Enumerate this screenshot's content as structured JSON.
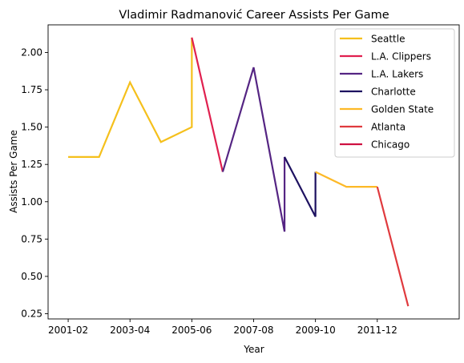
{
  "chart_data": {
    "type": "line",
    "title": "Vladimir Radmanović Career Assists Per Game",
    "xlabel": "Year",
    "ylabel": "Assists Per Game",
    "x_tick_labels": [
      "2001-02",
      "2003-04",
      "2005-06",
      "2007-08",
      "2009-10",
      "2011-12"
    ],
    "y_ticks": [
      0.25,
      0.5,
      0.75,
      1.0,
      1.25,
      1.5,
      1.75,
      2.0
    ],
    "xlim": [
      -0.65,
      12.65
    ],
    "ylim": [
      0.215,
      2.185
    ],
    "grid": false,
    "legend_position": "top-right",
    "series": [
      {
        "name": "Seattle",
        "color": "#f5c01c",
        "points": [
          [
            0,
            1.3
          ],
          [
            1,
            1.3
          ],
          [
            2,
            1.8
          ],
          [
            3,
            1.4
          ],
          [
            4,
            1.5
          ],
          [
            4,
            2.1
          ]
        ]
      },
      {
        "name": "L.A. Clippers",
        "color": "#e0204f",
        "points": [
          [
            4,
            2.1
          ],
          [
            5,
            1.2
          ]
        ]
      },
      {
        "name": "L.A. Lakers",
        "color": "#552583",
        "points": [
          [
            5,
            1.2
          ],
          [
            6,
            1.9
          ],
          [
            7,
            0.8
          ],
          [
            7,
            1.3
          ]
        ]
      },
      {
        "name": "Charlotte",
        "color": "#1d1160",
        "points": [
          [
            7,
            1.3
          ],
          [
            8,
            0.9
          ],
          [
            8,
            1.2
          ]
        ]
      },
      {
        "name": "Golden State",
        "color": "#fdb927",
        "points": [
          [
            8,
            1.2
          ],
          [
            9,
            1.1
          ],
          [
            10,
            1.1
          ]
        ]
      },
      {
        "name": "Atlanta",
        "color": "#e03a3e",
        "points": [
          [
            10,
            1.1
          ],
          [
            11,
            0.3
          ]
        ]
      },
      {
        "name": "Chicago",
        "color": "#ce1141",
        "points": []
      }
    ]
  }
}
